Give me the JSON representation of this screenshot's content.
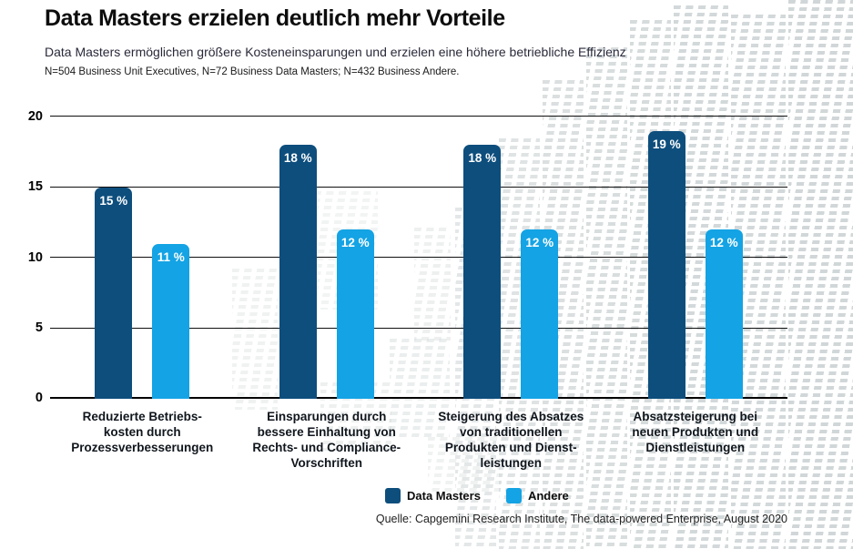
{
  "header": {
    "title": "Data Masters erzielen deutlich mehr Vorteile",
    "subtitle": "Data Masters ermöglichen größere Kosteneinsparungen und erzielen eine höhere betriebliche Effizienz",
    "note": "N=504 Business Unit Executives, N=72 Business Data Masters; N=432 Business Andere."
  },
  "chart_data": {
    "type": "bar",
    "categories": [
      "Reduzierte Betriebs-\nkosten durch\nProzessverbesserungen",
      "Einsparungen durch\nbessere Einhaltung von\nRechts- und Compliance-\nVorschriften",
      "Steigerung des Absatzes\nvon traditionellen\nProdukten und Dienst-\nleistungen",
      "Absatzsteigerung bei\nneuen Produkten und\nDienstleistungen"
    ],
    "series": [
      {
        "name": "Data Masters",
        "color": "#0d4e7d",
        "values": [
          15,
          18,
          18,
          19
        ]
      },
      {
        "name": "Andere",
        "color": "#14a3e4",
        "values": [
          11,
          12,
          12,
          12
        ]
      }
    ],
    "value_suffix": " %",
    "ylim": [
      0,
      20
    ],
    "yticks": [
      0,
      5,
      10,
      15,
      20
    ],
    "grid": true,
    "legend_position": "bottom",
    "xlabel": "",
    "ylabel": ""
  },
  "legend": {
    "items": [
      {
        "label": "Data Masters",
        "color": "#0d4e7d"
      },
      {
        "label": "Andere",
        "color": "#14a3e4"
      }
    ]
  },
  "source": "Quelle: Capgemini Research Institute, The data-powered Enterprise, August 2020",
  "colors": {
    "bar_dark_blue": "#0d4e7d",
    "bar_light_blue": "#14a3e4",
    "gridline": "#101010",
    "pattern_gray": "#cfd5d6",
    "value_text": "#ffffff"
  }
}
